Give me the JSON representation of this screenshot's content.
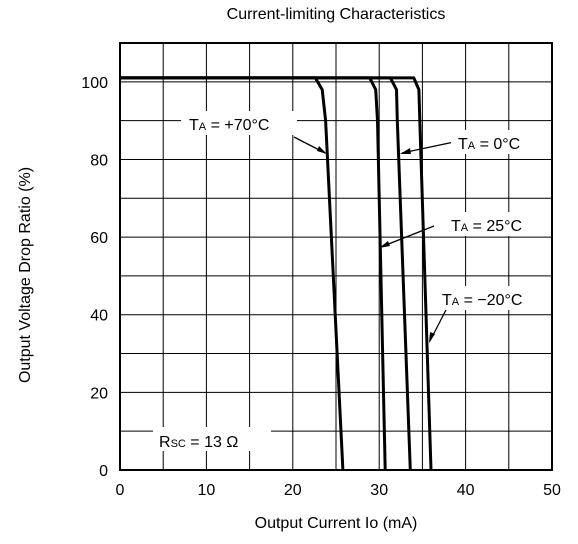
{
  "chart_data": {
    "type": "line",
    "title": "Current-limiting Characteristics",
    "xlabel": "Output Current Io (mA)",
    "ylabel": "Output Voltage Drop Ratio (%)",
    "xlim": [
      0,
      50
    ],
    "ylim": [
      0,
      110
    ],
    "x_ticks": [
      0,
      10,
      20,
      30,
      40,
      50
    ],
    "y_ticks": [
      0,
      20,
      40,
      60,
      80,
      100
    ],
    "grid": true,
    "series": [
      {
        "label_main": "T",
        "label_sub": "A",
        "label_rest": " = +70°C",
        "points": [
          [
            0,
            101
          ],
          [
            22.6,
            101
          ],
          [
            23.4,
            98
          ],
          [
            23.8,
            90
          ],
          [
            25.8,
            0
          ]
        ]
      },
      {
        "label_main": "T",
        "label_sub": "A",
        "label_rest": " = 25°C",
        "points": [
          [
            0,
            101
          ],
          [
            28.9,
            101
          ],
          [
            29.6,
            98
          ],
          [
            29.8,
            90
          ],
          [
            30.7,
            0
          ]
        ]
      },
      {
        "label_main": "T",
        "label_sub": "A",
        "label_rest": " = 0°C",
        "points": [
          [
            0,
            101
          ],
          [
            31.3,
            101
          ],
          [
            32.0,
            98
          ],
          [
            32.1,
            90
          ],
          [
            33.6,
            0
          ]
        ]
      },
      {
        "label_main": "T",
        "label_sub": "A",
        "label_rest": " = −20°C",
        "points": [
          [
            0,
            101
          ],
          [
            34.0,
            101
          ],
          [
            34.6,
            98
          ],
          [
            34.7,
            90
          ],
          [
            36.0,
            0
          ]
        ]
      }
    ],
    "annotation": {
      "main": "R",
      "sub": "SC",
      "rest": " = 13 Ω"
    }
  }
}
